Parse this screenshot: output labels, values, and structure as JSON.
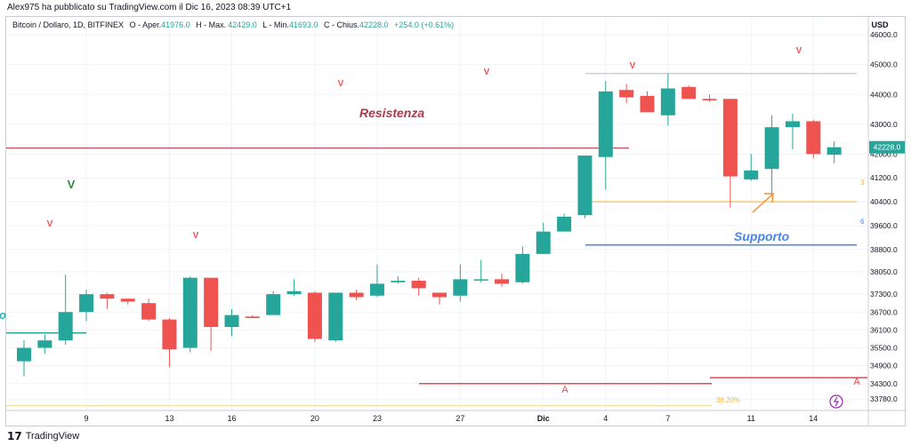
{
  "header": {
    "publisher": "Alex975 ha pubblicato su TradingView.com il Dic 16, 2023 08:39 UTC+1"
  },
  "legend": {
    "symbol": "Bitcoin / Dollaro, 1D, BITFINEX",
    "o_label": "O - Aper.",
    "o_value": "41976.0",
    "h_label": "H - Max.",
    "h_value": "42429.0",
    "l_label": "L - Min.",
    "l_value": "41693.0",
    "c_label": "C - Chius.",
    "c_value": "42228.0",
    "change": "+254.0 (+0.61%)"
  },
  "footer": {
    "brand": "TradingView",
    "logo_glyph": "17"
  },
  "colors": {
    "up": "#26a69a",
    "down": "#ef5350",
    "resistance": "#b2384a",
    "support": "#4a86e8",
    "fib_orange": "#f5b942",
    "a_line": "#e8474f",
    "grey_line": "#c8c8c8",
    "objective": "#2ea69a"
  },
  "chart_data": {
    "type": "candlestick",
    "currency_label": "USD",
    "ylim": [
      33400,
      46600
    ],
    "y_ticks": [
      "46000.0",
      "45000.0",
      "44000.0",
      "43000.0",
      "42000.0",
      "41200.0",
      "40400.0",
      "39600.0",
      "38800.0",
      "38050.0",
      "37300.0",
      "36700.0",
      "36100.0",
      "35500.0",
      "34900.0",
      "34300.0",
      "33780.0"
    ],
    "x_ticks": [
      {
        "label": "9",
        "index": 3
      },
      {
        "label": "13",
        "index": 7
      },
      {
        "label": "16",
        "index": 10
      },
      {
        "label": "20",
        "index": 14
      },
      {
        "label": "23",
        "index": 17
      },
      {
        "label": "27",
        "index": 21
      },
      {
        "label": "Dic",
        "index": 25
      },
      {
        "label": "4",
        "index": 28
      },
      {
        "label": "7",
        "index": 31
      },
      {
        "label": "11",
        "index": 35
      },
      {
        "label": "14",
        "index": 38
      }
    ],
    "candles": [
      {
        "o": 35050,
        "h": 35750,
        "l": 34550,
        "c": 35500
      },
      {
        "o": 35500,
        "h": 35950,
        "l": 35300,
        "c": 35750
      },
      {
        "o": 35750,
        "h": 37950,
        "l": 35600,
        "c": 36700
      },
      {
        "o": 36700,
        "h": 37450,
        "l": 36400,
        "c": 37300
      },
      {
        "o": 37300,
        "h": 37350,
        "l": 36800,
        "c": 37150
      },
      {
        "o": 37150,
        "h": 37150,
        "l": 36950,
        "c": 37050
      },
      {
        "o": 37000,
        "h": 37150,
        "l": 36400,
        "c": 36450
      },
      {
        "o": 36450,
        "h": 36500,
        "l": 34850,
        "c": 35450
      },
      {
        "o": 35500,
        "h": 37900,
        "l": 35350,
        "c": 37850
      },
      {
        "o": 37850,
        "h": 37850,
        "l": 35400,
        "c": 36200
      },
      {
        "o": 36200,
        "h": 36800,
        "l": 35900,
        "c": 36600
      },
      {
        "o": 36550,
        "h": 36600,
        "l": 36500,
        "c": 36500
      },
      {
        "o": 36600,
        "h": 37400,
        "l": 36600,
        "c": 37300
      },
      {
        "o": 37300,
        "h": 37800,
        "l": 37250,
        "c": 37400
      },
      {
        "o": 37350,
        "h": 37400,
        "l": 35700,
        "c": 35800
      },
      {
        "o": 35750,
        "h": 37350,
        "l": 35700,
        "c": 37350
      },
      {
        "o": 37350,
        "h": 37450,
        "l": 37100,
        "c": 37200
      },
      {
        "o": 37250,
        "h": 38300,
        "l": 37200,
        "c": 37650
      },
      {
        "o": 37700,
        "h": 37900,
        "l": 37650,
        "c": 37750
      },
      {
        "o": 37750,
        "h": 37850,
        "l": 37250,
        "c": 37500
      },
      {
        "o": 37350,
        "h": 37350,
        "l": 36950,
        "c": 37200
      },
      {
        "o": 37250,
        "h": 38300,
        "l": 37050,
        "c": 37800
      },
      {
        "o": 37800,
        "h": 38450,
        "l": 37700,
        "c": 37800
      },
      {
        "o": 37800,
        "h": 38000,
        "l": 37550,
        "c": 37650
      },
      {
        "o": 37700,
        "h": 38900,
        "l": 37650,
        "c": 38650
      },
      {
        "o": 38650,
        "h": 39700,
        "l": 38650,
        "c": 39400
      },
      {
        "o": 39400,
        "h": 40000,
        "l": 39400,
        "c": 39900
      },
      {
        "o": 39950,
        "h": 41900,
        "l": 39850,
        "c": 41950
      },
      {
        "o": 41900,
        "h": 44450,
        "l": 40800,
        "c": 44100
      },
      {
        "o": 44150,
        "h": 44350,
        "l": 43700,
        "c": 43900
      },
      {
        "o": 43950,
        "h": 44100,
        "l": 43400,
        "c": 43400
      },
      {
        "o": 43300,
        "h": 44700,
        "l": 42950,
        "c": 44200
      },
      {
        "o": 44250,
        "h": 44300,
        "l": 43850,
        "c": 43850
      },
      {
        "o": 43850,
        "h": 44000,
        "l": 43750,
        "c": 43800
      },
      {
        "o": 43850,
        "h": 43850,
        "l": 40200,
        "c": 41250
      },
      {
        "o": 41150,
        "h": 42000,
        "l": 41100,
        "c": 41450
      },
      {
        "o": 41500,
        "h": 43300,
        "l": 40600,
        "c": 42900
      },
      {
        "o": 42900,
        "h": 43350,
        "l": 42150,
        "c": 43100
      },
      {
        "o": 43100,
        "h": 43150,
        "l": 41850,
        "c": 42000
      },
      {
        "o": 41976,
        "h": 42429,
        "l": 41693,
        "c": 42228
      }
    ],
    "last_price": "42228.0",
    "annotations": {
      "resistance_label": "Resistenza",
      "support_label": "Supporto",
      "objective_label": "Obiettivo",
      "v_labels": [
        "V",
        "V",
        "V",
        "V",
        "V",
        "V",
        "V"
      ],
      "a_labels": [
        "A",
        "A"
      ],
      "fib_label": "38.20%",
      "fib_left_digit": "3",
      "blue_right_digit": "6"
    }
  }
}
